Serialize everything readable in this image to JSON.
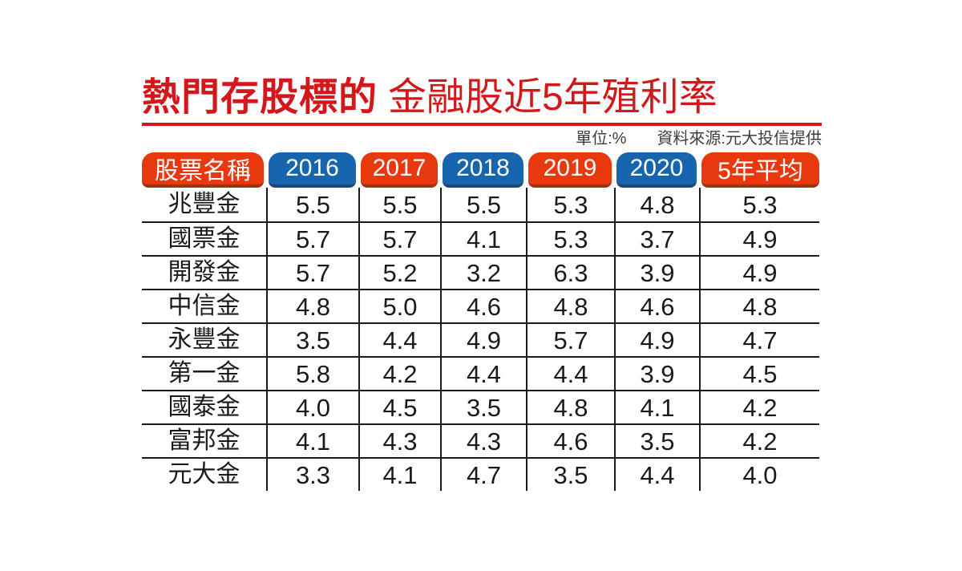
{
  "title": {
    "emphasis": "熱門存股標的",
    "rest": "金融股近5年殖利率"
  },
  "meta": {
    "unit": "單位:%",
    "source": "資料來源:元大投信提供"
  },
  "table": {
    "columns": [
      {
        "key": "stock-name",
        "label": "股票名稱",
        "scheme": "red"
      },
      {
        "key": "2016",
        "label": "2016",
        "scheme": "blue"
      },
      {
        "key": "2017",
        "label": "2017",
        "scheme": "red"
      },
      {
        "key": "2018",
        "label": "2018",
        "scheme": "blue"
      },
      {
        "key": "2019",
        "label": "2019",
        "scheme": "red"
      },
      {
        "key": "2020",
        "label": "2020",
        "scheme": "blue"
      },
      {
        "key": "5yr-avg",
        "label": "5年平均",
        "scheme": "red"
      }
    ],
    "rows": [
      {
        "name": "兆豐金",
        "values": [
          "5.5",
          "5.5",
          "5.5",
          "5.3",
          "4.8",
          "5.3"
        ]
      },
      {
        "name": "國票金",
        "values": [
          "5.7",
          "5.7",
          "4.1",
          "5.3",
          "3.7",
          "4.9"
        ]
      },
      {
        "name": "開發金",
        "values": [
          "5.7",
          "5.2",
          "3.2",
          "6.3",
          "3.9",
          "4.9"
        ]
      },
      {
        "name": "中信金",
        "values": [
          "4.8",
          "5.0",
          "4.6",
          "4.8",
          "4.6",
          "4.8"
        ]
      },
      {
        "name": "永豐金",
        "values": [
          "3.5",
          "4.4",
          "4.9",
          "5.7",
          "4.9",
          "4.7"
        ]
      },
      {
        "name": "第一金",
        "values": [
          "5.8",
          "4.2",
          "4.4",
          "4.4",
          "3.9",
          "4.5"
        ]
      },
      {
        "name": "國泰金",
        "values": [
          "4.0",
          "4.5",
          "3.5",
          "4.8",
          "4.1",
          "4.2"
        ]
      },
      {
        "name": "富邦金",
        "values": [
          "4.1",
          "4.3",
          "4.3",
          "4.6",
          "3.5",
          "4.2"
        ]
      },
      {
        "name": "元大金",
        "values": [
          "3.3",
          "4.1",
          "4.7",
          "3.5",
          "4.4",
          "4.0"
        ]
      }
    ]
  },
  "colors": {
    "title_red": "#d2181b",
    "header_red": "#e8380d",
    "header_red_dark": "#a03018",
    "header_blue": "#1766ad",
    "header_blue_dark": "#1d4575",
    "grid_line": "#1a1a1a",
    "text_dark": "#1a1a1a",
    "meta_text": "#3c3c3c"
  },
  "chart_data": {
    "type": "table",
    "title": "熱門存股標的 金融股近5年殖利率",
    "unit": "%",
    "source": "元大投信提供",
    "columns": [
      "股票名稱",
      "2016",
      "2017",
      "2018",
      "2019",
      "2020",
      "5年平均"
    ],
    "rows": [
      [
        "兆豐金",
        5.5,
        5.5,
        5.5,
        5.3,
        4.8,
        5.3
      ],
      [
        "國票金",
        5.7,
        5.7,
        4.1,
        5.3,
        3.7,
        4.9
      ],
      [
        "開發金",
        5.7,
        5.2,
        3.2,
        6.3,
        3.9,
        4.9
      ],
      [
        "中信金",
        4.8,
        5.0,
        4.6,
        4.8,
        4.6,
        4.8
      ],
      [
        "永豐金",
        3.5,
        4.4,
        4.9,
        5.7,
        4.9,
        4.7
      ],
      [
        "第一金",
        5.8,
        4.2,
        4.4,
        4.4,
        3.9,
        4.5
      ],
      [
        "國泰金",
        4.0,
        4.5,
        3.5,
        4.8,
        4.1,
        4.2
      ],
      [
        "富邦金",
        4.1,
        4.3,
        4.3,
        4.6,
        3.5,
        4.2
      ],
      [
        "元大金",
        3.3,
        4.1,
        4.7,
        3.5,
        4.4,
        4.0
      ]
    ]
  }
}
